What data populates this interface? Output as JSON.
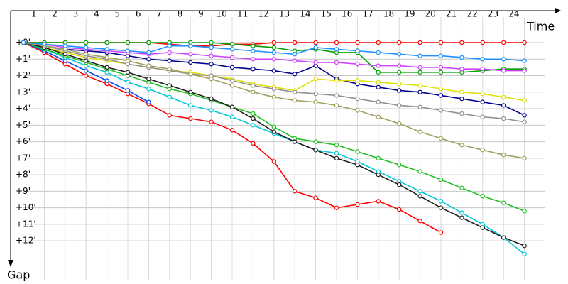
{
  "chart_data": {
    "type": "line",
    "x_label": "Time",
    "y_label": "Gap",
    "x": [
      0,
      1,
      2,
      3,
      4,
      5,
      6,
      7,
      8,
      9,
      10,
      11,
      12,
      13,
      14,
      15,
      16,
      17,
      18,
      19,
      20,
      21,
      22,
      23,
      24
    ],
    "xlim": [
      0,
      25
    ],
    "xticks": [
      1,
      2,
      3,
      4,
      5,
      6,
      7,
      8,
      9,
      10,
      11,
      12,
      13,
      14,
      15,
      16,
      17,
      18,
      19,
      20,
      21,
      22,
      23,
      24
    ],
    "ylim": [
      0,
      14.4
    ],
    "yticks": [
      {
        "value": 0,
        "label": "+0'"
      },
      {
        "value": 1,
        "label": "+1'"
      },
      {
        "value": 2,
        "label": "+2'"
      },
      {
        "value": 3,
        "label": "+3'"
      },
      {
        "value": 4,
        "label": "+4'"
      },
      {
        "value": 5,
        "label": "+5'"
      },
      {
        "value": 6,
        "label": "+6'"
      },
      {
        "value": 7,
        "label": "+7'"
      },
      {
        "value": 8,
        "label": "+8'"
      },
      {
        "value": 9,
        "label": "+9'"
      },
      {
        "value": 10,
        "label": "+10'"
      },
      {
        "value": 11,
        "label": "+11'"
      },
      {
        "value": 12,
        "label": "+12'"
      }
    ],
    "y_inverted": true,
    "grid": true,
    "series": [
      {
        "color": "#ff0000",
        "values": [
          0,
          0,
          0,
          0,
          0,
          0,
          0,
          0.1,
          0.2,
          0.2,
          0.1,
          0.1,
          0,
          0,
          0,
          0,
          0,
          0,
          0,
          0,
          0,
          0,
          0,
          0,
          0
        ]
      },
      {
        "color": "#ff0000",
        "values": [
          0,
          0.6,
          1.3,
          2.0,
          2.5,
          3.1,
          3.7,
          4.4,
          4.6,
          4.8,
          5.3,
          6.1,
          7.2,
          9.0,
          9.4,
          10.0,
          9.8,
          9.6,
          10.1,
          10.8,
          11.5,
          null,
          null,
          null,
          null
        ]
      },
      {
        "color": "#0050ff",
        "values": [
          0,
          0.5,
          1.1,
          1.7,
          2.3,
          2.9,
          3.6,
          null,
          null,
          null,
          null,
          null,
          null,
          null,
          null,
          null,
          null,
          null,
          null,
          null,
          null,
          null,
          null,
          null,
          null
        ]
      },
      {
        "color": "#00a000",
        "values": [
          0,
          0,
          0,
          0,
          0,
          0,
          0,
          0,
          0,
          0,
          0.1,
          0.2,
          0.3,
          0.5,
          0.4,
          0.6,
          0.6,
          1.8,
          1.8,
          1.8,
          1.8,
          1.8,
          1.7,
          1.6,
          1.6
        ]
      },
      {
        "color": "#000090",
        "values": [
          0,
          0.2,
          0.4,
          0.5,
          0.6,
          0.8,
          1.0,
          1.1,
          1.2,
          1.3,
          1.5,
          1.6,
          1.7,
          1.9,
          1.4,
          2.2,
          2.5,
          2.7,
          2.9,
          3.0,
          3.2,
          3.4,
          3.6,
          3.8,
          4.4
        ]
      },
      {
        "color": "#e0e000",
        "values": [
          0,
          0.3,
          0.6,
          0.9,
          1.1,
          1.3,
          1.5,
          1.7,
          1.8,
          2.0,
          2.2,
          2.5,
          2.7,
          2.9,
          2.2,
          2.3,
          2.3,
          2.4,
          2.5,
          2.6,
          2.8,
          3.0,
          3.1,
          3.3,
          3.5
        ]
      },
      {
        "color": "#00c8d8",
        "values": [
          0,
          0.4,
          0.9,
          1.4,
          1.8,
          2.4,
          2.8,
          3.3,
          3.8,
          4.1,
          4.5,
          5.0,
          5.5,
          6.0,
          6.5,
          6.7,
          7.2,
          7.8,
          8.4,
          9.0,
          9.6,
          10.3,
          11.0,
          11.8,
          12.8
        ]
      },
      {
        "color": "#909090",
        "values": [
          0,
          0.2,
          0.5,
          0.8,
          1.0,
          1.3,
          1.5,
          1.7,
          1.9,
          2.0,
          2.3,
          2.6,
          2.8,
          3.0,
          3.1,
          3.2,
          3.4,
          3.6,
          3.8,
          3.9,
          4.1,
          4.3,
          4.5,
          4.6,
          4.8
        ]
      },
      {
        "color": "#d040ff",
        "values": [
          0,
          0.1,
          0.3,
          0.4,
          0.5,
          0.6,
          0.7,
          0.6,
          0.7,
          0.8,
          0.9,
          1.0,
          1.0,
          1.1,
          1.2,
          1.2,
          1.3,
          1.4,
          1.4,
          1.5,
          1.5,
          1.6,
          1.6,
          1.7,
          1.7
        ]
      },
      {
        "color": "#20c020",
        "values": [
          0,
          0.4,
          0.8,
          1.2,
          1.6,
          2.0,
          2.4,
          2.8,
          3.1,
          3.5,
          3.9,
          4.3,
          5.1,
          5.8,
          6.0,
          6.2,
          6.6,
          7.0,
          7.4,
          7.8,
          8.3,
          8.8,
          9.3,
          9.7,
          10.2
        ]
      },
      {
        "color": "#202020",
        "values": [
          0,
          0.3,
          0.7,
          1.1,
          1.5,
          1.8,
          2.2,
          2.6,
          3.0,
          3.4,
          3.9,
          4.6,
          5.4,
          6.0,
          6.5,
          7.0,
          7.4,
          8.0,
          8.6,
          9.3,
          10.0,
          10.6,
          11.2,
          11.8,
          12.3
        ]
      },
      {
        "color": "#a0a060",
        "values": [
          0,
          0.2,
          0.4,
          0.7,
          0.9,
          1.1,
          1.4,
          1.6,
          1.9,
          2.2,
          2.6,
          3.0,
          3.3,
          3.5,
          3.6,
          3.8,
          4.1,
          4.5,
          4.9,
          5.4,
          5.8,
          6.2,
          6.5,
          6.8,
          7.0
        ]
      },
      {
        "color": "#1e90ff",
        "values": [
          0,
          0.1,
          0.2,
          0.3,
          0.4,
          0.5,
          0.6,
          0.2,
          0.2,
          0.3,
          0.4,
          0.5,
          0.6,
          0.7,
          0.3,
          0.4,
          0.5,
          0.6,
          0.7,
          0.8,
          0.8,
          0.9,
          1.0,
          1.0,
          1.1
        ]
      }
    ]
  }
}
